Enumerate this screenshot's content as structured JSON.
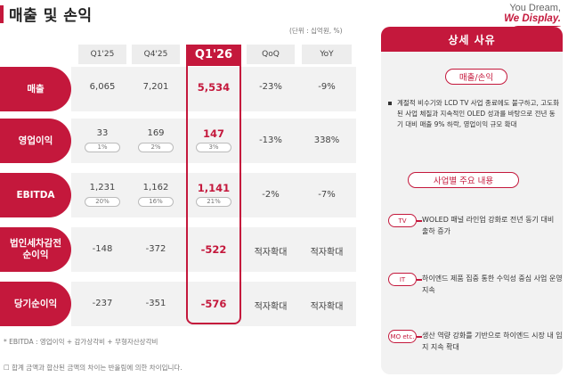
{
  "header": {
    "title": "매출 및 손익",
    "unit": "(단위 : 십억원, %)",
    "brand_line1": "You Dream,",
    "brand_line2": "We Display."
  },
  "table": {
    "columns": [
      "Q1'25",
      "Q4'25",
      "Q1'26",
      "QoQ",
      "YoY"
    ],
    "rows": [
      {
        "label": "매출",
        "values": [
          "6,065",
          "7,201",
          "5,534",
          "-23%",
          "-9%"
        ],
        "margins": []
      },
      {
        "label": "영업이익",
        "values": [
          "33",
          "169",
          "147",
          "-13%",
          "338%"
        ],
        "margins": [
          "1%",
          "2%",
          "3%"
        ]
      },
      {
        "label": "EBITDA",
        "values": [
          "1,231",
          "1,162",
          "1,141",
          "-2%",
          "-7%"
        ],
        "margins": [
          "20%",
          "16%",
          "21%"
        ]
      },
      {
        "label_line1": "법인세차감전",
        "label_line2": "순이익",
        "values": [
          "-148",
          "-372",
          "-522",
          "적자확대",
          "적자확대"
        ],
        "margins": []
      },
      {
        "label": "당기순이익",
        "values": [
          "-237",
          "-351",
          "-576",
          "적자확대",
          "적자확대"
        ],
        "margins": []
      }
    ]
  },
  "footnotes": {
    "ebitda": "* EBITDA : 영업이익 + 감가상각비 + 무형자산상각비",
    "rounding": "☐ 합계 금액과 합산된 금액의 차이는 반올림에 의한 차이입니다."
  },
  "panel": {
    "title": "상세 사유",
    "section1": "매출/손익",
    "section1_text": "계절적 비수기와 LCD TV 사업 종료에도 불구하고, 고도화된 사업 체질과 지속적인 OLED 성과를 바탕으로 전년 동기 대비 매출 9% 하락, 영업이익 규모 확대",
    "section2": "사업별 주요 내용",
    "items": [
      {
        "tag": "TV",
        "text": "WOLED 패널 라인업 강화로 전년 동기 대비 출하 증가"
      },
      {
        "tag": "IT",
        "text": "하이엔드 제품 집중 통한 수익성 중심 사업 운영 지속"
      },
      {
        "tag": "MO etc.",
        "text": "생산 역량 강화를 기반으로 하이엔드 시장 내 입지 지속 확대"
      }
    ]
  },
  "colors": {
    "accent": "#c4183c",
    "row_bg": "#f2f2f2",
    "header_bg": "#ededed"
  }
}
